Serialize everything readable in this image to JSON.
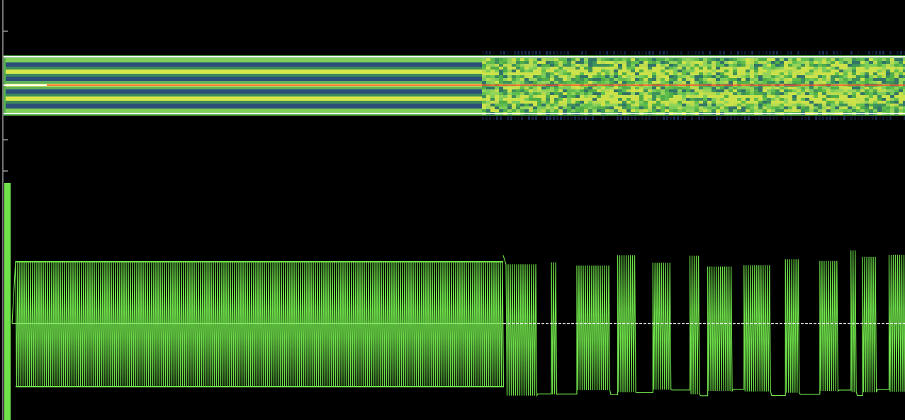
{
  "window": {
    "title": ""
  },
  "colors": {
    "background": "#000000",
    "signal": "#6fe24a",
    "signal_dim": "#4fbf35",
    "spectrum_dark": "#2b4f78",
    "spectrum_mid": "#55b04a",
    "spectrum_hot": "#d8e84a",
    "marker_center": "#ff4a2a",
    "marker_bounds": "#ffffff",
    "zero_line": "#ffffff",
    "axis": "#9a9a9a"
  },
  "views": {
    "spectrogram": {
      "visible": true,
      "selection_visible": true,
      "center_marker_visible": true
    },
    "waveform": {
      "visible": true,
      "zero_line_visible": true,
      "preamble_fraction": 0.556
    }
  },
  "icons": {
    "left_axis": "vertical-ruler-icon"
  }
}
